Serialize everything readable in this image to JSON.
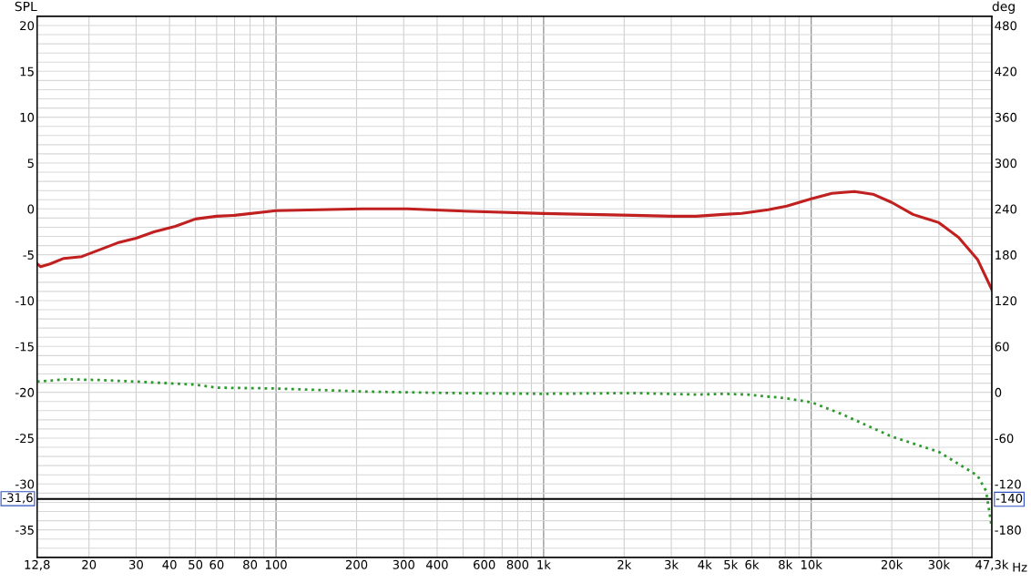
{
  "chart_data": {
    "type": "line",
    "xlabel": "Hz",
    "ylabel": "SPL",
    "y2label": "deg",
    "log": "x",
    "grid": true,
    "legend": false,
    "xlim": [
      12.8,
      47300
    ],
    "ylim": [
      -38,
      21
    ],
    "y2lim": [
      -216,
      492
    ],
    "xticks": [
      {
        "value": 12.8,
        "label": "12,8"
      },
      20,
      30,
      40,
      50,
      60,
      {
        "value": 70,
        "label": null
      },
      80,
      {
        "value": 90,
        "label": null
      },
      100,
      200,
      300,
      400,
      {
        "value": 500,
        "label": null
      },
      600,
      {
        "value": 700,
        "label": null
      },
      800,
      {
        "value": 900,
        "label": null
      },
      {
        "value": 1000,
        "label": "1k"
      },
      {
        "value": 2000,
        "label": "2k"
      },
      {
        "value": 3000,
        "label": "3k"
      },
      {
        "value": 4000,
        "label": "4k"
      },
      {
        "value": 5000,
        "label": "5k"
      },
      {
        "value": 6000,
        "label": "6k"
      },
      {
        "value": 7000,
        "label": null
      },
      {
        "value": 8000,
        "label": "8k"
      },
      {
        "value": 9000,
        "label": null
      },
      {
        "value": 10000,
        "label": "10k"
      },
      {
        "value": 20000,
        "label": "20k"
      },
      {
        "value": 30000,
        "label": "30k"
      },
      {
        "value": 40000,
        "label": null
      },
      {
        "value": 47300,
        "label": "47,3k"
      }
    ],
    "yticks": [
      {
        "value": -37,
        "label": null
      },
      {
        "value": -36,
        "label": null
      },
      -35,
      {
        "value": -34,
        "label": null
      },
      {
        "value": -33,
        "label": null
      },
      {
        "value": -32,
        "label": null
      },
      {
        "value": -31,
        "label": null
      },
      -30,
      {
        "value": -29,
        "label": null
      },
      {
        "value": -28,
        "label": null
      },
      {
        "value": -27,
        "label": null
      },
      {
        "value": -26,
        "label": null
      },
      -25,
      {
        "value": -24,
        "label": null
      },
      {
        "value": -23,
        "label": null
      },
      {
        "value": -22,
        "label": null
      },
      {
        "value": -21,
        "label": null
      },
      -20,
      {
        "value": -19,
        "label": null
      },
      {
        "value": -18,
        "label": null
      },
      {
        "value": -17,
        "label": null
      },
      {
        "value": -16,
        "label": null
      },
      -15,
      {
        "value": -14,
        "label": null
      },
      {
        "value": -13,
        "label": null
      },
      {
        "value": -12,
        "label": null
      },
      {
        "value": -11,
        "label": null
      },
      -10,
      {
        "value": -9,
        "label": null
      },
      {
        "value": -8,
        "label": null
      },
      {
        "value": -7,
        "label": null
      },
      {
        "value": -6,
        "label": null
      },
      -5,
      {
        "value": -4,
        "label": null
      },
      {
        "value": -3,
        "label": null
      },
      {
        "value": -2,
        "label": null
      },
      {
        "value": -1,
        "label": null
      },
      0,
      {
        "value": 1,
        "label": null
      },
      {
        "value": 2,
        "label": null
      },
      {
        "value": 3,
        "label": null
      },
      {
        "value": 4,
        "label": null
      },
      5,
      {
        "value": 6,
        "label": null
      },
      {
        "value": 7,
        "label": null
      },
      {
        "value": 8,
        "label": null
      },
      {
        "value": 9,
        "label": null
      },
      10,
      {
        "value": 11,
        "label": null
      },
      {
        "value": 12,
        "label": null
      },
      {
        "value": 13,
        "label": null
      },
      {
        "value": 14,
        "label": null
      },
      15,
      {
        "value": 16,
        "label": null
      },
      {
        "value": 17,
        "label": null
      },
      {
        "value": 18,
        "label": null
      },
      {
        "value": 19,
        "label": null
      },
      20
    ],
    "y2ticks": [
      -180,
      -120,
      -60,
      0,
      60,
      120,
      180,
      240,
      300,
      360,
      420,
      480
    ],
    "ref_lines": [
      {
        "axis": "y",
        "value": -31.6,
        "label": "-31,6",
        "color": "#000000"
      },
      {
        "axis": "y2",
        "value": -140,
        "label": "-140",
        "color": "#000000"
      }
    ],
    "series": [
      {
        "color": "#c0201f",
        "line_style": "solid",
        "x": [
          12.8,
          13.2,
          14.3,
          16.1,
          18.8,
          20,
          25.6,
          30,
          35,
          42,
          50,
          60,
          70,
          100,
          210,
          310,
          456,
          1000,
          1470,
          2160,
          3000,
          3720,
          4700,
          5500,
          6900,
          8100,
          10000,
          11950,
          14500,
          17000,
          20000,
          24000,
          30000,
          35500,
          41800,
          47300
        ],
        "values": [
          -6.0,
          -6.3,
          -6.0,
          -5.4,
          -5.2,
          -4.9,
          -3.7,
          -3.2,
          -2.5,
          -1.9,
          -1.1,
          -0.8,
          -0.7,
          -0.2,
          0,
          0,
          -0.2,
          -0.5,
          -0.6,
          -0.7,
          -0.8,
          -0.8,
          -0.6,
          -0.5,
          -0.1,
          0.3,
          1.1,
          1.7,
          1.9,
          1.6,
          0.7,
          -0.6,
          -1.5,
          -3.1,
          -5.5,
          -8.8
        ]
      },
      {
        "color": "#2e9a2e",
        "line_style": "dotted",
        "axis": "y2",
        "x": [
          12.8,
          16.5,
          22,
          30,
          50,
          60,
          100,
          210,
          456,
          1000,
          2160,
          3720,
          4700,
          5800,
          8100,
          10000,
          12900,
          20000,
          30000,
          41800,
          45000,
          47300
        ],
        "values": [
          14,
          17,
          16,
          14,
          10,
          6,
          5,
          1,
          -1,
          -2,
          -1,
          -3,
          -2,
          -3,
          -8,
          -13,
          -28,
          -58,
          -78,
          -109,
          -129,
          -177
        ]
      }
    ]
  }
}
